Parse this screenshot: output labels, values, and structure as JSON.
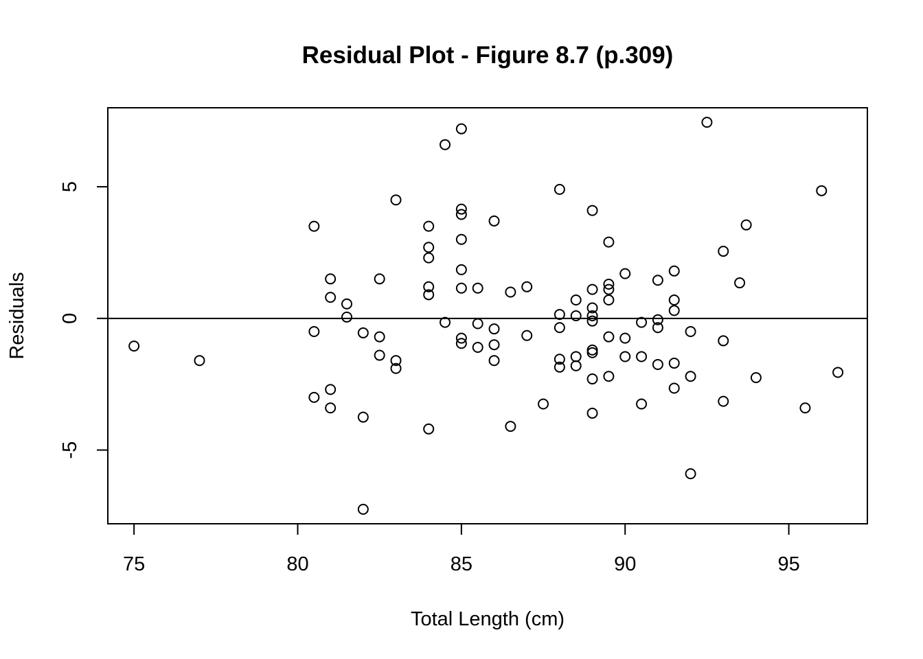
{
  "chart_data": {
    "type": "scatter",
    "title": "Residual Plot - Figure 8.7 (p.309)",
    "xlabel": "Total Length (cm)",
    "ylabel": "Residuals",
    "xlim": [
      74.2,
      97.4
    ],
    "ylim": [
      -7.8,
      8.0
    ],
    "xticks": [
      75,
      80,
      85,
      90,
      95
    ],
    "yticks": [
      -5,
      0,
      5
    ],
    "reference_line": {
      "y": 0
    },
    "grid": false,
    "marker": "open-circle",
    "color": "#000000",
    "points": [
      {
        "x": 75.0,
        "y": -1.05
      },
      {
        "x": 77.0,
        "y": -1.6
      },
      {
        "x": 80.5,
        "y": 3.5
      },
      {
        "x": 80.5,
        "y": -0.5
      },
      {
        "x": 80.5,
        "y": -3.0
      },
      {
        "x": 81.0,
        "y": 1.5
      },
      {
        "x": 81.0,
        "y": 0.8
      },
      {
        "x": 81.0,
        "y": -2.7
      },
      {
        "x": 81.0,
        "y": -3.4
      },
      {
        "x": 81.5,
        "y": 0.55
      },
      {
        "x": 81.5,
        "y": 0.05
      },
      {
        "x": 82.0,
        "y": -0.55
      },
      {
        "x": 82.0,
        "y": -3.75
      },
      {
        "x": 82.0,
        "y": -7.25
      },
      {
        "x": 82.5,
        "y": 1.5
      },
      {
        "x": 82.5,
        "y": -0.7
      },
      {
        "x": 82.5,
        "y": -1.4
      },
      {
        "x": 83.0,
        "y": 4.5
      },
      {
        "x": 83.0,
        "y": -1.6
      },
      {
        "x": 83.0,
        "y": -1.9
      },
      {
        "x": 84.0,
        "y": 3.5
      },
      {
        "x": 84.0,
        "y": 2.7
      },
      {
        "x": 84.0,
        "y": 2.3
      },
      {
        "x": 84.0,
        "y": 1.2
      },
      {
        "x": 84.0,
        "y": 0.9
      },
      {
        "x": 84.0,
        "y": -4.2
      },
      {
        "x": 84.5,
        "y": 6.6
      },
      {
        "x": 84.5,
        "y": -0.15
      },
      {
        "x": 85.0,
        "y": 7.2
      },
      {
        "x": 85.0,
        "y": 4.15
      },
      {
        "x": 85.0,
        "y": 3.95
      },
      {
        "x": 85.0,
        "y": 3.0
      },
      {
        "x": 85.0,
        "y": 1.85
      },
      {
        "x": 85.0,
        "y": 1.15
      },
      {
        "x": 85.0,
        "y": -0.75
      },
      {
        "x": 85.0,
        "y": -0.95
      },
      {
        "x": 85.5,
        "y": 1.15
      },
      {
        "x": 85.5,
        "y": -0.2
      },
      {
        "x": 85.5,
        "y": -1.1
      },
      {
        "x": 86.0,
        "y": 3.7
      },
      {
        "x": 86.0,
        "y": -0.4
      },
      {
        "x": 86.0,
        "y": -1.0
      },
      {
        "x": 86.0,
        "y": -1.6
      },
      {
        "x": 86.5,
        "y": 1.0
      },
      {
        "x": 86.5,
        "y": -4.1
      },
      {
        "x": 87.0,
        "y": 1.2
      },
      {
        "x": 87.0,
        "y": -0.65
      },
      {
        "x": 87.5,
        "y": -3.25
      },
      {
        "x": 88.0,
        "y": 4.9
      },
      {
        "x": 88.0,
        "y": 0.15
      },
      {
        "x": 88.0,
        "y": -0.35
      },
      {
        "x": 88.0,
        "y": -1.55
      },
      {
        "x": 88.0,
        "y": -1.85
      },
      {
        "x": 88.5,
        "y": 0.7
      },
      {
        "x": 88.5,
        "y": 0.1
      },
      {
        "x": 88.5,
        "y": -1.45
      },
      {
        "x": 88.5,
        "y": -1.8
      },
      {
        "x": 89.0,
        "y": 4.1
      },
      {
        "x": 89.0,
        "y": 1.1
      },
      {
        "x": 89.0,
        "y": 0.4
      },
      {
        "x": 89.0,
        "y": 0.1
      },
      {
        "x": 89.0,
        "y": -0.1
      },
      {
        "x": 89.0,
        "y": -1.2
      },
      {
        "x": 89.0,
        "y": -1.3
      },
      {
        "x": 89.0,
        "y": -2.3
      },
      {
        "x": 89.0,
        "y": -3.6
      },
      {
        "x": 89.5,
        "y": 2.9
      },
      {
        "x": 89.5,
        "y": 1.3
      },
      {
        "x": 89.5,
        "y": 1.1
      },
      {
        "x": 89.5,
        "y": 0.7
      },
      {
        "x": 89.5,
        "y": -0.7
      },
      {
        "x": 89.5,
        "y": -2.2
      },
      {
        "x": 90.0,
        "y": 1.7
      },
      {
        "x": 90.0,
        "y": -0.75
      },
      {
        "x": 90.0,
        "y": -1.45
      },
      {
        "x": 90.5,
        "y": -0.15
      },
      {
        "x": 90.5,
        "y": -1.45
      },
      {
        "x": 90.5,
        "y": -3.25
      },
      {
        "x": 91.0,
        "y": 1.45
      },
      {
        "x": 91.0,
        "y": -0.05
      },
      {
        "x": 91.0,
        "y": -0.35
      },
      {
        "x": 91.0,
        "y": -1.75
      },
      {
        "x": 91.5,
        "y": 1.8
      },
      {
        "x": 91.5,
        "y": 0.7
      },
      {
        "x": 91.5,
        "y": 0.3
      },
      {
        "x": 91.5,
        "y": -1.7
      },
      {
        "x": 91.5,
        "y": -2.65
      },
      {
        "x": 92.0,
        "y": -0.5
      },
      {
        "x": 92.0,
        "y": -2.2
      },
      {
        "x": 92.0,
        "y": -5.9
      },
      {
        "x": 92.5,
        "y": 7.45
      },
      {
        "x": 93.0,
        "y": 2.55
      },
      {
        "x": 93.0,
        "y": -0.85
      },
      {
        "x": 93.0,
        "y": -3.15
      },
      {
        "x": 93.5,
        "y": 1.35
      },
      {
        "x": 93.7,
        "y": 3.55
      },
      {
        "x": 94.0,
        "y": -2.25
      },
      {
        "x": 95.5,
        "y": -3.4
      },
      {
        "x": 96.0,
        "y": 4.85
      },
      {
        "x": 96.5,
        "y": -2.05
      }
    ]
  }
}
